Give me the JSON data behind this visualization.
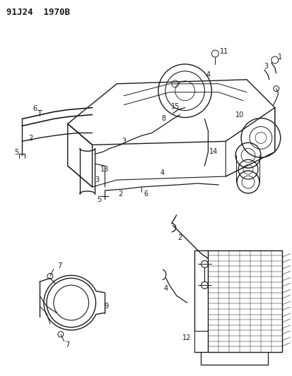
{
  "title": "91J24  1970B",
  "bg_color": "#ffffff",
  "line_color": "#1a1a1a",
  "fig_width": 4.14,
  "fig_height": 5.33,
  "dpi": 100
}
